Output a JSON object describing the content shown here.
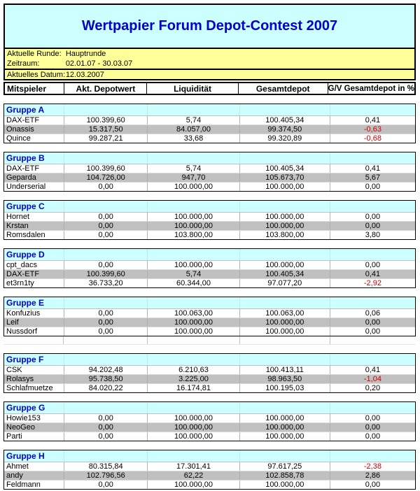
{
  "title": "Wertpapier Forum Depot-Contest 2007",
  "info": {
    "rows": [
      {
        "label": "Aktuelle Runde:",
        "value": "Hauptrunde"
      },
      {
        "label": "Zeitraum:",
        "value": "02.01.07 - 30.03.07"
      },
      {
        "label": "Aktuelles Datum:",
        "value": "12.03.2007"
      }
    ]
  },
  "table": {
    "columns": [
      "Mitspieler",
      "Akt. Depotwert",
      "Liquidität",
      "Gesamtdepot",
      "G/V Gesamtdepot in %"
    ]
  },
  "groups": [
    {
      "name": "Gruppe A",
      "rows": [
        {
          "player": "DAX-ETF",
          "depotwert": "100.399,60",
          "liquiditaet": "5,74",
          "gesamtdepot": "100.405,34",
          "gv": "0,41"
        },
        {
          "player": "Onassis",
          "depotwert": "15.317,50",
          "liquiditaet": "84.057,00",
          "gesamtdepot": "99.374,50",
          "gv": "-0,63"
        },
        {
          "player": "Quince",
          "depotwert": "99.287,21",
          "liquiditaet": "33,68",
          "gesamtdepot": "99.320,89",
          "gv": "-0,68"
        }
      ]
    },
    {
      "name": "Gruppe B",
      "rows": [
        {
          "player": "DAX-ETF",
          "depotwert": "100.399,60",
          "liquiditaet": "5,74",
          "gesamtdepot": "100.405,34",
          "gv": "0,41"
        },
        {
          "player": "Geparda",
          "depotwert": "104.726,00",
          "liquiditaet": "947,70",
          "gesamtdepot": "105.673,70",
          "gv": "5,67"
        },
        {
          "player": "Underserial",
          "depotwert": "0,00",
          "liquiditaet": "100.000,00",
          "gesamtdepot": "100.000,00",
          "gv": "0,00"
        }
      ]
    },
    {
      "name": "Gruppe C",
      "rows": [
        {
          "player": "Hornet",
          "depotwert": "0,00",
          "liquiditaet": "100.000,00",
          "gesamtdepot": "100.000,00",
          "gv": "0,00"
        },
        {
          "player": "Krstan",
          "depotwert": "0,00",
          "liquiditaet": "100.000,00",
          "gesamtdepot": "100.000,00",
          "gv": "0,00"
        },
        {
          "player": "Romsdalen",
          "depotwert": "0,00",
          "liquiditaet": "103.800,00",
          "gesamtdepot": "103.800,00",
          "gv": "3,80"
        }
      ]
    },
    {
      "name": "Gruppe D",
      "rows": [
        {
          "player": "cpt_dacs",
          "depotwert": "0,00",
          "liquiditaet": "100.000,00",
          "gesamtdepot": "100.000,00",
          "gv": "0,00"
        },
        {
          "player": "DAX-ETF",
          "depotwert": "100.399,60",
          "liquiditaet": "5,74",
          "gesamtdepot": "100.405,34",
          "gv": "0,41"
        },
        {
          "player": "et3rn1ty",
          "depotwert": "36.733,20",
          "liquiditaet": "60.344,00",
          "gesamtdepot": "97.077,20",
          "gv": "-2,92"
        }
      ]
    },
    {
      "name": "Gruppe E",
      "rows": [
        {
          "player": "Konfuzius",
          "depotwert": "0,00",
          "liquiditaet": "100.063,00",
          "gesamtdepot": "100.063,00",
          "gv": "0,06"
        },
        {
          "player": "Leif",
          "depotwert": "0,00",
          "liquiditaet": "100.000,00",
          "gesamtdepot": "100.000,00",
          "gv": "0,00"
        },
        {
          "player": "Nussdorf",
          "depotwert": "0,00",
          "liquiditaet": "100.000,00",
          "gesamtdepot": "100.000,00",
          "gv": "0,00"
        }
      ]
    },
    {
      "name": "Gruppe F",
      "rows": [
        {
          "player": "CSK",
          "depotwert": "94.202,48",
          "liquiditaet": "6.210,63",
          "gesamtdepot": "100.413,11",
          "gv": "0,41"
        },
        {
          "player": "Rolasys",
          "depotwert": "95.738,50",
          "liquiditaet": "3.225,00",
          "gesamtdepot": "98.963,50",
          "gv": "-1,04"
        },
        {
          "player": "Schlafmuetze",
          "depotwert": "84.020,22",
          "liquiditaet": "16.174,81",
          "gesamtdepot": "100.195,03",
          "gv": "0,20"
        }
      ]
    },
    {
      "name": "Gruppe G",
      "rows": [
        {
          "player": "Howie153",
          "depotwert": "0,00",
          "liquiditaet": "100.000,00",
          "gesamtdepot": "100.000,00",
          "gv": "0,00"
        },
        {
          "player": "NeoGeo",
          "depotwert": "0,00",
          "liquiditaet": "100.000,00",
          "gesamtdepot": "100.000,00",
          "gv": "0,00"
        },
        {
          "player": "Parti",
          "depotwert": "0,00",
          "liquiditaet": "100.000,00",
          "gesamtdepot": "100.000,00",
          "gv": "0,00"
        }
      ]
    },
    {
      "name": "Gruppe H",
      "rows": [
        {
          "player": "Ahmet",
          "depotwert": "80.315,84",
          "liquiditaet": "17.301,41",
          "gesamtdepot": "97.617,25",
          "gv": "-2,38"
        },
        {
          "player": "andy",
          "depotwert": "102.796,56",
          "liquiditaet": "62,22",
          "gesamtdepot": "102.858,78",
          "gv": "2,86"
        },
        {
          "player": "Feldmann",
          "depotwert": "0,00",
          "liquiditaet": "100.000,00",
          "gesamtdepot": "100.000,00",
          "gv": "0,00"
        }
      ]
    }
  ],
  "colors": {
    "title_blue": "#0000cc",
    "band_cyan": "#ccffff",
    "band_yellow": "#ffff99",
    "row_gray": "#c0c0c0",
    "negative_red": "#cc0000",
    "border_black": "#000000"
  }
}
